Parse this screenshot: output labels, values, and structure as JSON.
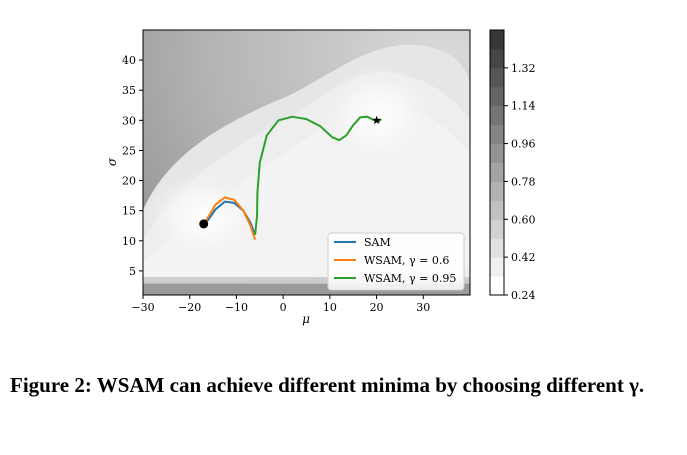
{
  "chart_data": {
    "type": "contour",
    "xlabel": "μ",
    "ylabel": "σ",
    "xlim": [
      -30,
      40
    ],
    "ylim": [
      1,
      45
    ],
    "x_ticks": [
      "−30",
      "−20",
      "−10",
      "0",
      "10",
      "20",
      "30"
    ],
    "x_tick_values": [
      -30,
      -20,
      -10,
      0,
      10,
      20,
      30
    ],
    "y_ticks": [
      "5",
      "10",
      "15",
      "20",
      "25",
      "30",
      "35",
      "40"
    ],
    "y_tick_values": [
      5,
      10,
      15,
      20,
      25,
      30,
      35,
      40
    ],
    "grid": false,
    "legend_position": "bottom-right",
    "colorbar": {
      "min": 0.24,
      "max": 1.5,
      "tick_values": [
        0.24,
        0.42,
        0.6,
        0.78,
        0.96,
        1.14,
        1.32
      ],
      "tick_labels": [
        "0.24",
        "0.42",
        "0.60",
        "0.78",
        "0.96",
        "1.14",
        "1.32"
      ]
    },
    "minima": [
      {
        "x": -17,
        "y": 12.8,
        "marker": "dot"
      },
      {
        "x": 20,
        "y": 30,
        "marker": "star"
      }
    ],
    "series": [
      {
        "name": "SAM",
        "label_text": "SAM",
        "color": "#1f77b4",
        "points": [
          [
            -6,
            11
          ],
          [
            -7,
            13
          ],
          [
            -8.5,
            15
          ],
          [
            -10.5,
            16.3
          ],
          [
            -12.5,
            16.5
          ],
          [
            -14.5,
            15.2
          ],
          [
            -16,
            13.5
          ],
          [
            -17,
            12.8
          ]
        ]
      },
      {
        "name": "WSAM, γ = 0.6",
        "label_text": "WSAM, γ = 0.6",
        "color": "#ff7f0e",
        "points": [
          [
            -6,
            10.2
          ],
          [
            -7,
            12.5
          ],
          [
            -8.5,
            15
          ],
          [
            -10.5,
            16.8
          ],
          [
            -12.5,
            17.2
          ],
          [
            -14.5,
            16
          ],
          [
            -16,
            14
          ],
          [
            -17,
            12.8
          ]
        ]
      },
      {
        "name": "WSAM, γ = 0.95",
        "label_text": "WSAM, γ = 0.95",
        "color": "#2ca02c",
        "points": [
          [
            -6,
            11
          ],
          [
            -5.6,
            14
          ],
          [
            -5.5,
            18
          ],
          [
            -5,
            23
          ],
          [
            -3.5,
            27.5
          ],
          [
            -1,
            30
          ],
          [
            2,
            30.6
          ],
          [
            5,
            30.2
          ],
          [
            8,
            29
          ],
          [
            10.5,
            27.2
          ],
          [
            12,
            26.7
          ],
          [
            13.5,
            27.5
          ],
          [
            15,
            29.2
          ],
          [
            16.5,
            30.5
          ],
          [
            18,
            30.6
          ],
          [
            19.5,
            30
          ],
          [
            20.5,
            29.8
          ],
          [
            21,
            30.2
          ]
        ]
      }
    ]
  },
  "caption": "Figure 2: WSAM can achieve different minima by choosing different γ."
}
